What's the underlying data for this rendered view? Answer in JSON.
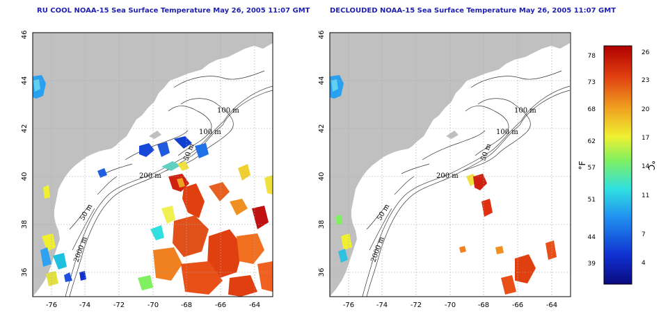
{
  "panels": [
    {
      "id": "left",
      "title": "RU COOL NOAA-15 Sea Surface Temperature May 26, 2005 11:07 GMT",
      "variant": "cloudy"
    },
    {
      "id": "right",
      "title": "DECLOUDED NOAA-15 Sea Surface Temperature May 26, 2005 11:07 GMT",
      "variant": "declouded"
    }
  ],
  "axes": {
    "lon_ticks": [
      -76,
      -74,
      -72,
      -70,
      -68,
      -66,
      -64
    ],
    "lat_ticks": [
      36,
      38,
      40,
      42,
      44,
      46
    ],
    "lon_range": [
      -77.2,
      -63.0
    ],
    "lat_range": [
      35.0,
      46.0
    ]
  },
  "contour_labels": [
    "100 m",
    "100 m",
    "50 m",
    "200 m",
    "50 m",
    "2000 m"
  ],
  "colorbar": {
    "fahrenheit_unit": "°F",
    "celsius_unit": "°C",
    "fahrenheit_ticks": [
      "78",
      "73",
      "68",
      "62",
      "57",
      "51",
      "44",
      "39"
    ],
    "celsius_ticks": [
      "26",
      "23",
      "20",
      "17",
      "14",
      "11",
      "7",
      "4"
    ],
    "colors": [
      "#0a0a80",
      "#1030d0",
      "#2090f0",
      "#30e0e0",
      "#80f060",
      "#f0f030",
      "#f0a020",
      "#e04010",
      "#b00000"
    ]
  },
  "colors": {
    "land": "#c0c0c0",
    "ocean": "#ffffff",
    "title": "#1f1fb0"
  }
}
